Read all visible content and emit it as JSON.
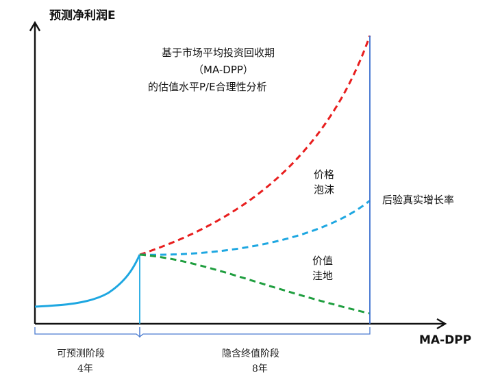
{
  "y_axis_label": "预测净利润E",
  "x_axis_label": "MA-DPP",
  "title_lines": [
    "基于市场平均投资回收期",
    "（MA-DPP）",
    "的估值水平P/E合理性分析"
  ],
  "annotations": {
    "bubble": [
      "价格",
      "泡沫"
    ],
    "depression": [
      "价值",
      "洼地"
    ],
    "realized_growth": "后验真实增长率"
  },
  "phases": [
    {
      "name": "可预测阶段",
      "duration": "4年"
    },
    {
      "name": "隐含终值阶段",
      "duration": "8年"
    }
  ],
  "colors": {
    "axis": "#111111",
    "forecast_curve": "#1ea7e1",
    "price_bubble": "#e81e1e",
    "mid_scenario": "#1ea7e1",
    "value_depression": "#1f9e3f",
    "boundary_line": "#3a6fcf",
    "bracket": "#4a7bd0"
  }
}
